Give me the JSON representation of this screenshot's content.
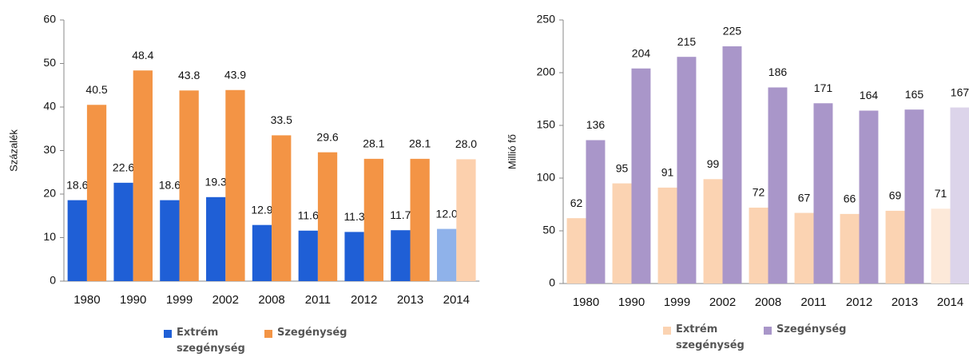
{
  "chart_data": [
    {
      "type": "bar",
      "ylabel": "Százalék",
      "categories": [
        "1980",
        "1990",
        "1999",
        "2002",
        "2008",
        "2011",
        "2012",
        "2013",
        "2014"
      ],
      "ylim": [
        0,
        60
      ],
      "yticks": [
        0,
        10,
        20,
        30,
        40,
        50,
        60
      ],
      "series": [
        {
          "name": "Extrém szegénység",
          "color": "#1f5fd6",
          "colors": [
            "#1f5fd6",
            "#1f5fd6",
            "#1f5fd6",
            "#1f5fd6",
            "#1f5fd6",
            "#1f5fd6",
            "#1f5fd6",
            "#1f5fd6",
            "#8fb2ea"
          ],
          "values": [
            18.6,
            22.6,
            18.6,
            19.3,
            12.9,
            11.6,
            11.3,
            11.7,
            12.0
          ],
          "value_labels": [
            "18.6",
            "22.6",
            "18.6",
            "19.3",
            "12.9",
            "11.6",
            "11.3",
            "11.7",
            "12.0"
          ]
        },
        {
          "name": "Szegénység",
          "color": "#f39445",
          "colors": [
            "#f39445",
            "#f39445",
            "#f39445",
            "#f39445",
            "#f39445",
            "#f39445",
            "#f39445",
            "#f39445",
            "#fcd0ad"
          ],
          "values": [
            40.5,
            48.4,
            43.8,
            43.9,
            33.5,
            29.6,
            28.1,
            28.1,
            28.0
          ],
          "value_labels": [
            "40.5",
            "48.4",
            "43.8",
            "43.9",
            "33.5",
            "29.6",
            "28.1",
            "28.1",
            "28.0"
          ]
        }
      ]
    },
    {
      "type": "bar",
      "ylabel": "Millió fő",
      "categories": [
        "1980",
        "1990",
        "1999",
        "2002",
        "2008",
        "2011",
        "2012",
        "2013",
        "2014"
      ],
      "ylim": [
        0,
        250
      ],
      "yticks": [
        0,
        50,
        100,
        150,
        200,
        250
      ],
      "series": [
        {
          "name": "Extrém szegénység",
          "color": "#fbd3b2",
          "colors": [
            "#fbd3b2",
            "#fbd3b2",
            "#fbd3b2",
            "#fbd3b2",
            "#fbd3b2",
            "#fbd3b2",
            "#fbd3b2",
            "#fbd3b2",
            "#fde9d9"
          ],
          "values": [
            62,
            95,
            91,
            99,
            72,
            67,
            66,
            69,
            71
          ]
        },
        {
          "name": "Szegénység",
          "color": "#a996c9",
          "colors": [
            "#a996c9",
            "#a996c9",
            "#a996c9",
            "#a996c9",
            "#a996c9",
            "#a996c9",
            "#a996c9",
            "#a996c9",
            "#dcd4ea"
          ],
          "values": [
            136,
            204,
            215,
            225,
            186,
            171,
            164,
            165,
            167
          ]
        }
      ]
    }
  ]
}
